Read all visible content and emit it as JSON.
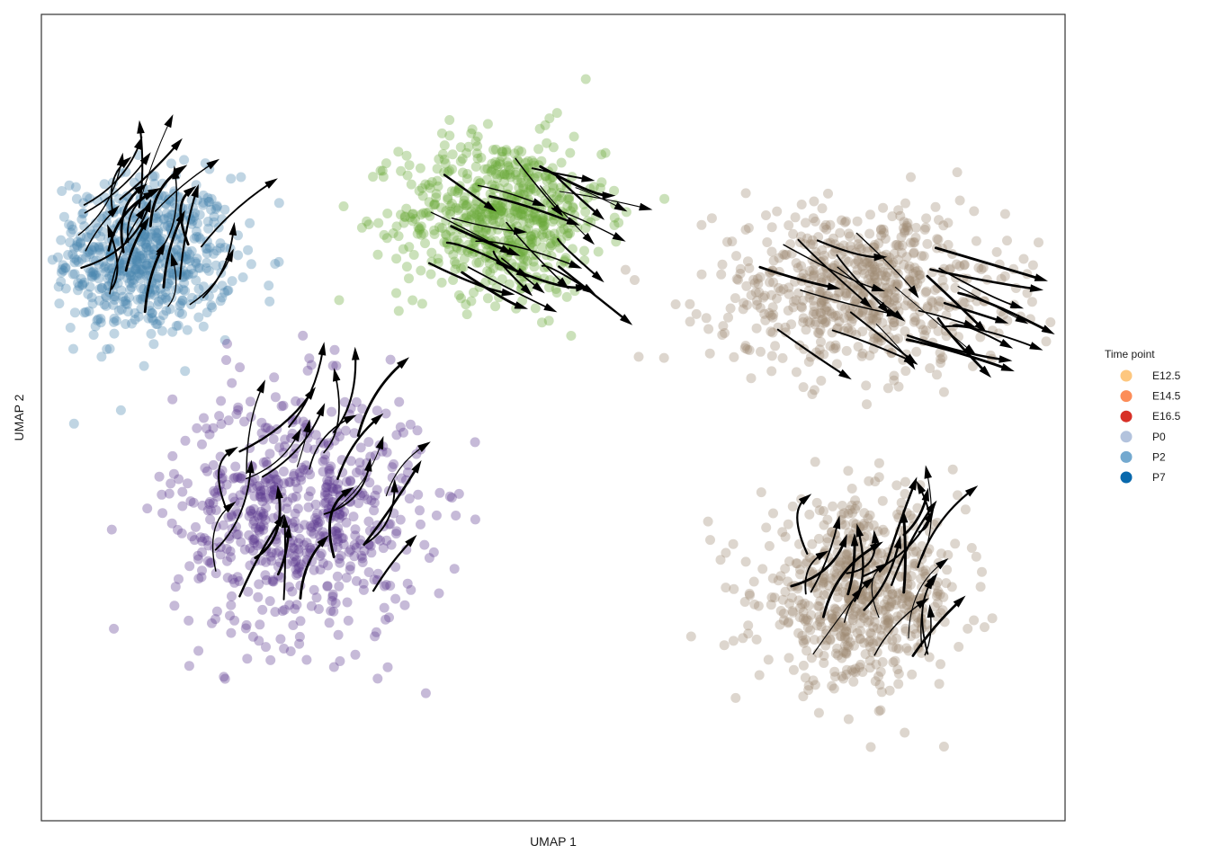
{
  "chart_data": {
    "type": "scatter",
    "subtype": "umap-velocity-stream",
    "xlabel": "UMAP 1",
    "ylabel": "UMAP 2",
    "xlim": [
      0,
      100
    ],
    "ylim": [
      0,
      100
    ],
    "ticks_shown": false,
    "grid": false,
    "legend": {
      "title": "Time point",
      "placement": "right",
      "entries": [
        {
          "label": "E12.5",
          "color": "#fdc77f"
        },
        {
          "label": "E14.5",
          "color": "#fc8d59"
        },
        {
          "label": "E16.5",
          "color": "#d73027"
        },
        {
          "label": "P0",
          "color": "#b3c3dd"
        },
        {
          "label": "P2",
          "color": "#74a9cf"
        },
        {
          "label": "P7",
          "color": "#0868ac"
        }
      ]
    },
    "clusters": [
      {
        "color": "#4a88b0",
        "center": [
          10,
          70
        ],
        "spread": [
          8,
          9
        ]
      },
      {
        "color": "#6aaa3a",
        "center": [
          45,
          75
        ],
        "spread": [
          9,
          9
        ]
      },
      {
        "color": "#5c3a8f",
        "center": [
          25,
          38
        ],
        "spread": [
          11,
          14
        ]
      },
      {
        "color": "#9e8a72",
        "center": [
          80,
          66
        ],
        "spread": [
          13,
          9
        ]
      },
      {
        "color": "#9e8a72",
        "center": [
          80,
          28
        ],
        "spread": [
          9,
          10
        ]
      }
    ],
    "point_alpha": 0.35,
    "streamlines": true
  }
}
